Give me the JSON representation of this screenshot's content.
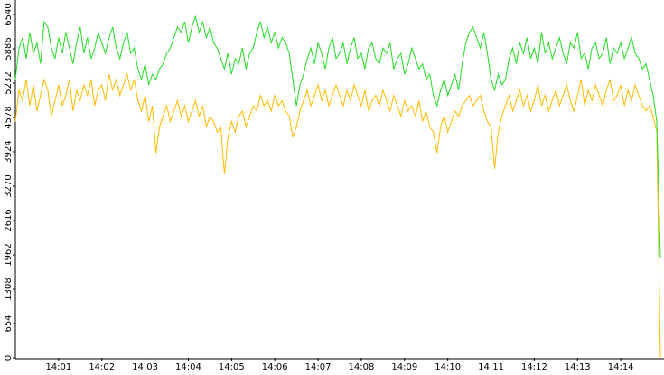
{
  "chart_data": {
    "type": "line",
    "categories": [
      null,
      null,
      null,
      null,
      null,
      null,
      null,
      null,
      null,
      null,
      null,
      null,
      "14:01",
      null,
      null,
      null,
      null,
      null,
      null,
      null,
      null,
      null,
      null,
      null,
      "14:02",
      null,
      null,
      null,
      null,
      null,
      null,
      null,
      null,
      null,
      null,
      null,
      "14:03",
      null,
      null,
      null,
      null,
      null,
      null,
      null,
      null,
      null,
      null,
      null,
      "14:04",
      null,
      null,
      null,
      null,
      null,
      null,
      null,
      null,
      null,
      null,
      null,
      "14:05",
      null,
      null,
      null,
      null,
      null,
      null,
      null,
      null,
      null,
      null,
      null,
      "14:06",
      null,
      null,
      null,
      null,
      null,
      null,
      null,
      null,
      null,
      null,
      null,
      "14:07",
      null,
      null,
      null,
      null,
      null,
      null,
      null,
      null,
      null,
      null,
      null,
      "14:08",
      null,
      null,
      null,
      null,
      null,
      null,
      null,
      null,
      null,
      null,
      null,
      "14:09",
      null,
      null,
      null,
      null,
      null,
      null,
      null,
      null,
      null,
      null,
      null,
      "14:10",
      null,
      null,
      null,
      null,
      null,
      null,
      null,
      null,
      null,
      null,
      null,
      "14:11",
      null,
      null,
      null,
      null,
      null,
      null,
      null,
      null,
      null,
      null,
      null,
      "14:12",
      null,
      null,
      null,
      null,
      null,
      null,
      null,
      null,
      null,
      null,
      null,
      "14:13",
      null,
      null,
      null,
      null,
      null,
      null,
      null,
      null,
      null,
      null,
      null,
      "14:14",
      null,
      null,
      null,
      null,
      null,
      null,
      null,
      null,
      null,
      null,
      null
    ],
    "series": [
      {
        "color": "#22dd22",
        "values": [
          5300,
          5900,
          6100,
          5700,
          6200,
          5800,
          6000,
          5600,
          6400,
          6300,
          5900,
          5700,
          6100,
          5800,
          6200,
          5900,
          5600,
          6000,
          6300,
          5800,
          6100,
          5700,
          5900,
          6200,
          6000,
          5800,
          6100,
          6300,
          5900,
          5700,
          6000,
          6200,
          5800,
          5900,
          5500,
          5300,
          5600,
          5200,
          5400,
          5300,
          5500,
          5600,
          5800,
          5900,
          6100,
          6300,
          6200,
          6400,
          6000,
          6300,
          6500,
          6200,
          6400,
          6100,
          6300,
          6000,
          5900,
          5700,
          5500,
          5800,
          5400,
          5700,
          5600,
          5900,
          5500,
          5800,
          5900,
          6200,
          6400,
          6100,
          6300,
          6000,
          6200,
          5900,
          6100,
          6000,
          5800,
          5300,
          4800,
          5200,
          5400,
          5700,
          5900,
          5600,
          6000,
          5800,
          5500,
          5900,
          6100,
          5700,
          5800,
          6000,
          5600,
          5900,
          6100,
          5700,
          5800,
          5500,
          5900,
          6000,
          5700,
          5600,
          5900,
          5800,
          6000,
          5500,
          5700,
          5800,
          5400,
          5600,
          5900,
          5700,
          5500,
          5600,
          5300,
          5400,
          5000,
          4800,
          5100,
          5300,
          5000,
          5200,
          5400,
          5100,
          5600,
          6000,
          6200,
          6300,
          6100,
          5900,
          6200,
          5800,
          5300,
          5100,
          5400,
          5200,
          5300,
          5700,
          5900,
          5600,
          6000,
          5800,
          6100,
          5700,
          5900,
          5600,
          6200,
          5800,
          6000,
          5700,
          5900,
          6100,
          5800,
          5600,
          6000,
          5900,
          6200,
          5700,
          5800,
          5500,
          5900,
          6000,
          5700,
          5800,
          6100,
          5600,
          5900,
          5800,
          6000,
          5700,
          5900,
          6100,
          5800,
          5700,
          5500,
          5600,
          5300,
          5000,
          4500,
          1900
        ]
      },
      {
        "color": "#ffbb00",
        "values": [
          4500,
          5100,
          4900,
          5300,
          4800,
          5200,
          4700,
          5000,
          5300,
          5100,
          4600,
          4900,
          5200,
          4800,
          5000,
          5300,
          4700,
          5100,
          4900,
          5200,
          5000,
          5300,
          4800,
          5100,
          5200,
          4900,
          5400,
          5100,
          5300,
          5000,
          5200,
          5400,
          5100,
          5300,
          4900,
          4700,
          5000,
          4500,
          4800,
          3900,
          4400,
          4600,
          4800,
          4500,
          4700,
          4900,
          4600,
          4800,
          4500,
          4700,
          4900,
          4600,
          4800,
          4400,
          4600,
          4500,
          4300,
          4400,
          3500,
          4200,
          4500,
          4300,
          4600,
          4700,
          4400,
          4600,
          4800,
          4700,
          5000,
          4800,
          4900,
          4700,
          5000,
          4800,
          4900,
          4700,
          4600,
          4200,
          4400,
          4700,
          4900,
          5100,
          4800,
          5000,
          5200,
          4900,
          5100,
          4800,
          5000,
          5200,
          5000,
          4800,
          5100,
          4900,
          5200,
          5000,
          4800,
          5100,
          4700,
          4900,
          5000,
          4800,
          5100,
          4900,
          4700,
          5000,
          4800,
          4600,
          4900,
          4700,
          4800,
          4600,
          4900,
          4500,
          4700,
          4400,
          4300,
          3900,
          4400,
          4600,
          4300,
          4500,
          4700,
          4600,
          4800,
          4900,
          5000,
          4800,
          4900,
          5000,
          4700,
          4500,
          4400,
          3600,
          4300,
          4600,
          4800,
          5000,
          4700,
          4900,
          5100,
          4800,
          5000,
          4700,
          4900,
          5200,
          4800,
          5000,
          4700,
          4900,
          5100,
          4800,
          5000,
          5200,
          4900,
          4700,
          5000,
          5300,
          4800,
          5100,
          4900,
          5200,
          5000,
          4800,
          5100,
          5300,
          4900,
          5000,
          5200,
          4800,
          5100,
          4900,
          5200,
          5000,
          4800,
          4700,
          4800,
          4600,
          4300,
          0
        ]
      }
    ],
    "ylim": [
      0,
      6540
    ],
    "yticks": [
      0,
      654,
      1308,
      1962,
      2616,
      3270,
      3924,
      4578,
      5232,
      5886,
      6540
    ]
  }
}
